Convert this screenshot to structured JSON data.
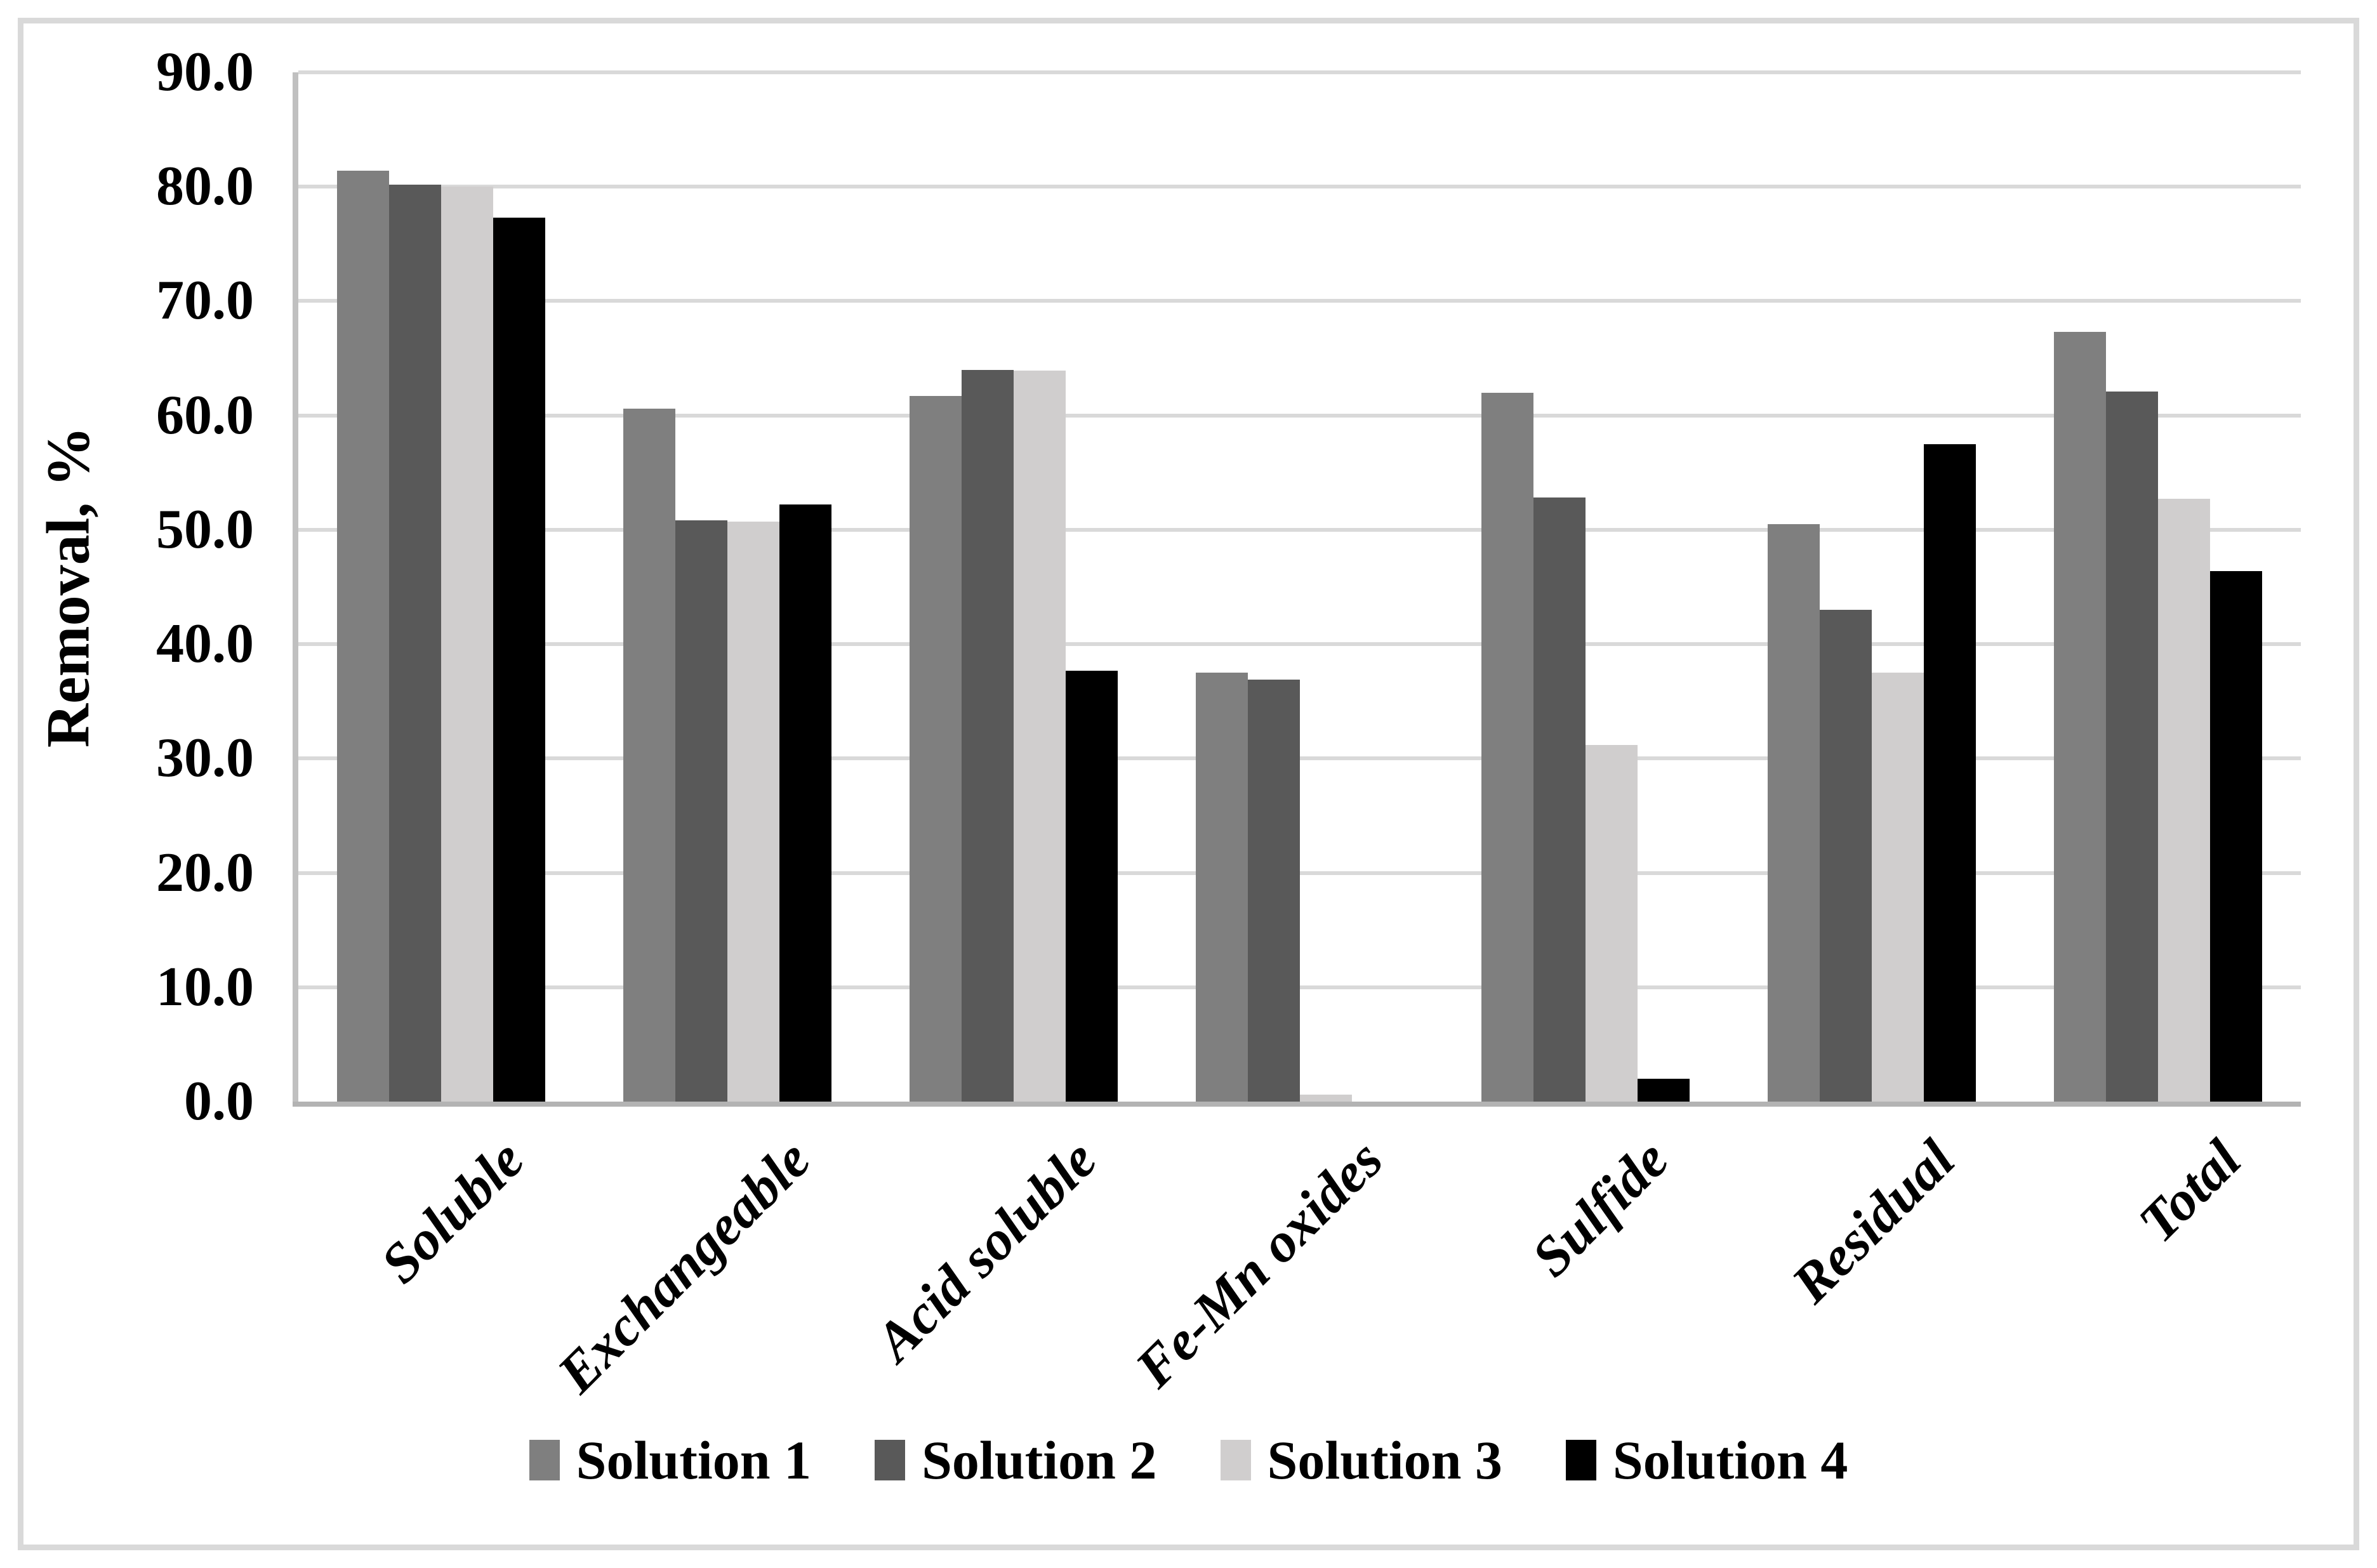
{
  "figure": {
    "background_color": "#ffffff",
    "frame_color": "#d9d9d9",
    "gridline_color": "#d9d9d9",
    "axis_line_color": "#bfbfbf"
  },
  "chart_data": {
    "type": "bar",
    "title": "",
    "xlabel": "",
    "ylabel": "Removal, %",
    "ylim": [
      0,
      90
    ],
    "ytick_step": 10,
    "y_tick_labels": [
      "0.0",
      "10.0",
      "20.0",
      "30.0",
      "40.0",
      "50.0",
      "60.0",
      "70.0",
      "80.0",
      "90.0"
    ],
    "grid": "horizontal",
    "legend_position": "bottom-center",
    "x_label_rotation_deg": 45,
    "categories": [
      "Soluble",
      "Exchangeable",
      "Acid soluble",
      "Fe-Mn oxides",
      "Sulfide",
      "Residual",
      "Total"
    ],
    "series": [
      {
        "name": "Solution 1",
        "color": "#7f7f7f",
        "values": [
          81.4,
          60.6,
          61.7,
          37.5,
          62.0,
          50.5,
          67.3
        ]
      },
      {
        "name": "Solution 2",
        "color": "#595959",
        "values": [
          80.2,
          50.8,
          64.0,
          36.9,
          52.8,
          43.0,
          62.1
        ]
      },
      {
        "name": "Solution 3",
        "color": "#d0cece",
        "values": [
          80.0,
          50.7,
          63.9,
          0.6,
          31.2,
          37.5,
          52.7
        ]
      },
      {
        "name": "Solution 4",
        "color": "#000000",
        "values": [
          77.3,
          52.2,
          37.7,
          0.0,
          2.0,
          57.5,
          46.4
        ]
      }
    ]
  }
}
